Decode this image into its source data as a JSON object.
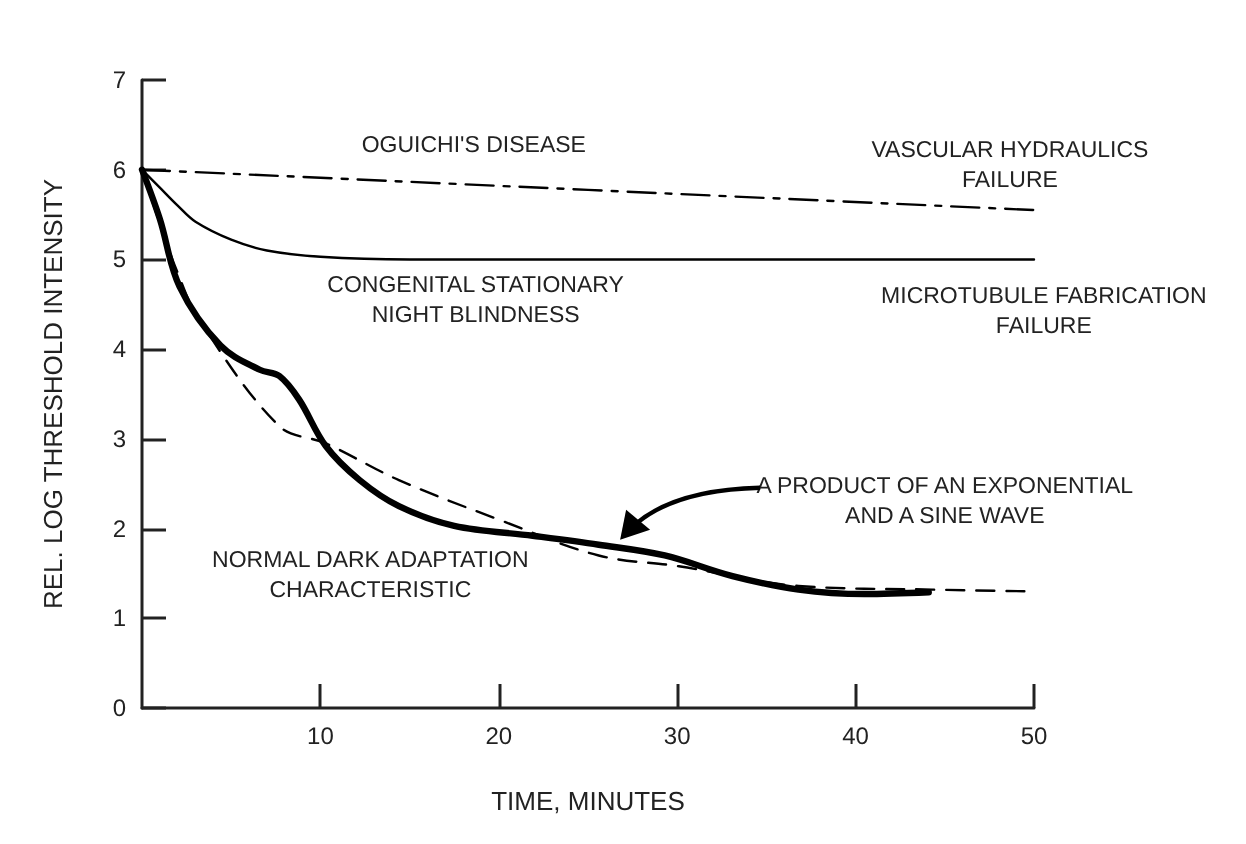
{
  "chart_data": {
    "type": "line",
    "xlabel": "TIME, MINUTES",
    "ylabel": "REL. LOG THRESHOLD INTENSITY",
    "xlim": [
      0,
      50
    ],
    "xticks": [
      10,
      20,
      30,
      40,
      50
    ],
    "ylim": [
      0,
      7
    ],
    "yticks": [
      0,
      1,
      2,
      3,
      4,
      5,
      6,
      7
    ],
    "grid": false,
    "marker": "none",
    "series": [
      {
        "color": "#000000",
        "line_style": "dashdot",
        "x": [
          0,
          50
        ],
        "values": [
          6,
          5.55
        ]
      },
      {
        "color": "#000000",
        "line_style": "solid",
        "x": [
          0,
          1,
          2,
          3,
          5,
          7,
          10,
          15,
          50
        ],
        "values": [
          6,
          5.8,
          5.6,
          5.42,
          5.22,
          5.1,
          5.03,
          5.0,
          5.0
        ]
      },
      {
        "color": "#000000",
        "line_style": "solid",
        "x": [
          0,
          1,
          2.1,
          4.4,
          6.6,
          7.7,
          8.8,
          10.3,
          12.2,
          14.4,
          17.5,
          21.9,
          25.6,
          29.3,
          33.1,
          36.8,
          40.5,
          44.1
        ],
        "values": [
          6,
          5.45,
          4.7,
          4.04,
          3.77,
          3.7,
          3.44,
          2.92,
          2.54,
          2.25,
          2.03,
          1.92,
          1.82,
          1.7,
          1.47,
          1.32,
          1.27,
          1.29
        ]
      },
      {
        "color": "#000000",
        "line_style": "dashed",
        "x": [
          0,
          1,
          2,
          3.2,
          7.7,
          10.3,
          14.4,
          20,
          25.6,
          30.1,
          36.8,
          44.3,
          50
        ],
        "values": [
          6,
          5.4,
          4.85,
          4.33,
          3.14,
          2.95,
          2.54,
          2.1,
          1.7,
          1.58,
          1.36,
          1.32,
          1.3
        ]
      }
    ],
    "annotations": [
      "OGUICHI'S DISEASE",
      "VASCULAR HYDRAULICS\nFAILURE",
      "CONGENITAL STATIONARY\nNIGHT BLINDNESS",
      "MICROTUBULE FABRICATION\nFAILURE",
      "NORMAL DARK ADAPTATION\nCHARACTERISTIC",
      "A PRODUCT OF AN EXPONENTIAL\nAND A SINE WAVE"
    ]
  }
}
